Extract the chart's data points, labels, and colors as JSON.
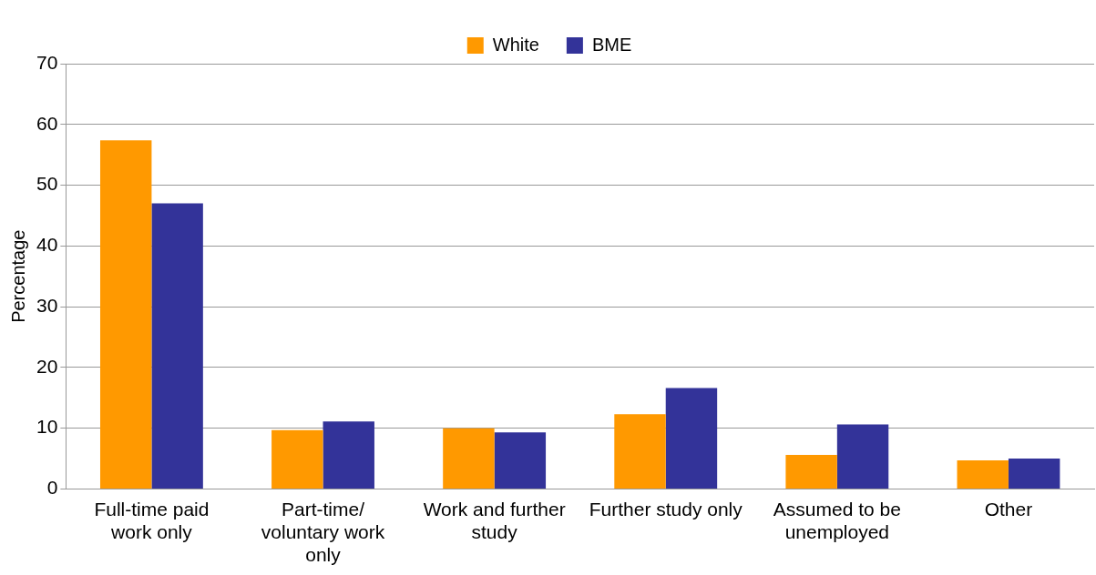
{
  "chart_data": {
    "type": "bar",
    "ylabel": "Percentage",
    "categories": [
      "Full-time paid work only",
      "Part-time/ voluntary work only",
      "Work and further study",
      "Further study only",
      "Assumed to be unemployed",
      "Other"
    ],
    "series": [
      {
        "name": "White",
        "color": "#ff9900",
        "values": [
          57.4,
          9.7,
          10.0,
          12.3,
          5.6,
          4.7
        ]
      },
      {
        "name": "BME",
        "color": "#333399",
        "values": [
          47.0,
          11.1,
          9.3,
          16.6,
          10.6,
          5.0
        ]
      }
    ],
    "ylim": [
      0,
      70
    ],
    "yticks": [
      0,
      10,
      20,
      30,
      40,
      50,
      60,
      70
    ],
    "grid": "y",
    "legend": "top"
  }
}
